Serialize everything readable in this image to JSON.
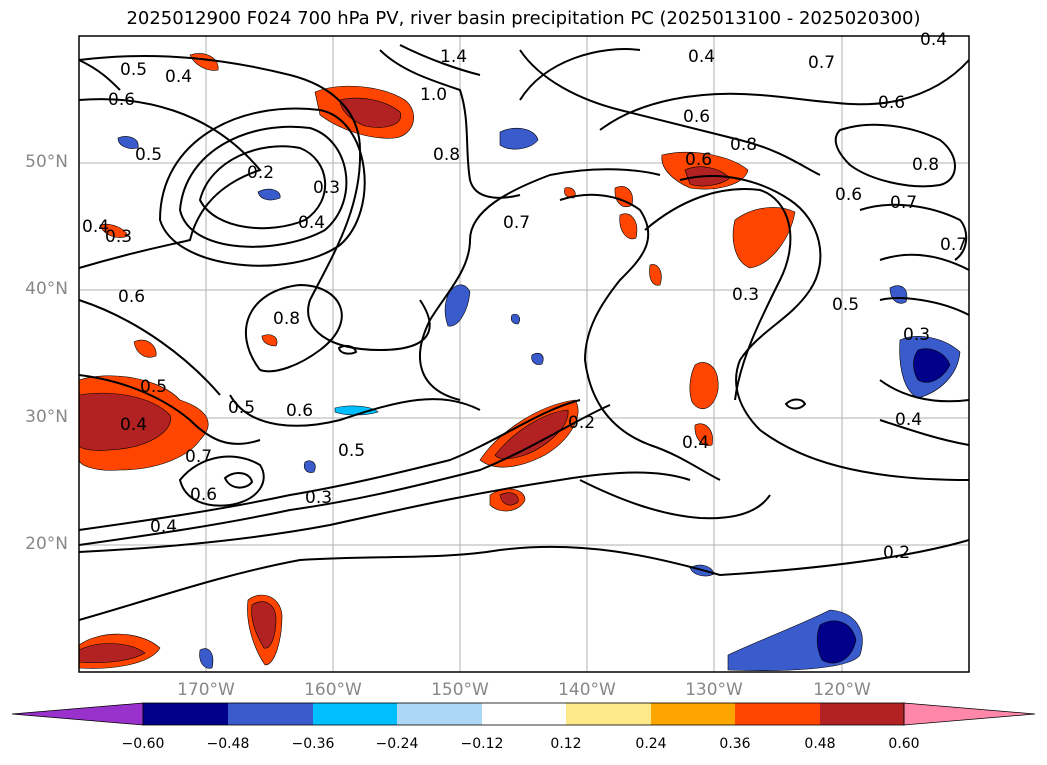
{
  "title": "2025012900 F024 700 hPa PV, river basin precipitation PC (2025013100 - 2025020300)",
  "lat_labels": [
    "50°N",
    "40°N",
    "30°N",
    "20°N"
  ],
  "lon_labels": [
    "170°W",
    "160°W",
    "150°W",
    "140°W",
    "130°W",
    "120°W"
  ],
  "colorbar": {
    "colors": [
      "#9932cc",
      "#00008b",
      "#3a5bcc",
      "#00bfff",
      "#add8f5",
      "#ffffff",
      "#fde98a",
      "#ffa500",
      "#ff4500",
      "#b22222",
      "#ff88aa"
    ],
    "ticks": [
      "−0.60",
      "−0.48",
      "−0.36",
      "−0.24",
      "−0.12",
      "0.12",
      "0.24",
      "0.36",
      "0.48",
      "0.60"
    ]
  },
  "contour_labels": [
    {
      "text": "0.5"
    },
    {
      "text": "0.4"
    },
    {
      "text": "0.6"
    },
    {
      "text": "0.5"
    },
    {
      "text": "0.2"
    },
    {
      "text": "0.3"
    },
    {
      "text": "0.4"
    },
    {
      "text": "0.4"
    },
    {
      "text": "0.3"
    },
    {
      "text": "1.4"
    },
    {
      "text": "1.0"
    },
    {
      "text": "0.8"
    },
    {
      "text": "0.6"
    },
    {
      "text": "0.8"
    },
    {
      "text": "0.5"
    },
    {
      "text": "0.4"
    },
    {
      "text": "0.5"
    },
    {
      "text": "0.6"
    },
    {
      "text": "0.7"
    },
    {
      "text": "0.6"
    },
    {
      "text": "0.5"
    },
    {
      "text": "0.3"
    },
    {
      "text": "0.4"
    },
    {
      "text": "0.7"
    },
    {
      "text": "0.2"
    },
    {
      "text": "0.4"
    },
    {
      "text": "0.3"
    },
    {
      "text": "0.4"
    },
    {
      "text": "0.6"
    },
    {
      "text": "0.6"
    },
    {
      "text": "0.7"
    },
    {
      "text": "0.6"
    },
    {
      "text": "0.8"
    },
    {
      "text": "0.6"
    },
    {
      "text": "0.7"
    },
    {
      "text": "0.7"
    },
    {
      "text": "0.5"
    },
    {
      "text": "0.3"
    },
    {
      "text": "0.4"
    },
    {
      "text": "0.2"
    },
    {
      "text": "0.8"
    },
    {
      "text": "0.4"
    }
  ]
}
